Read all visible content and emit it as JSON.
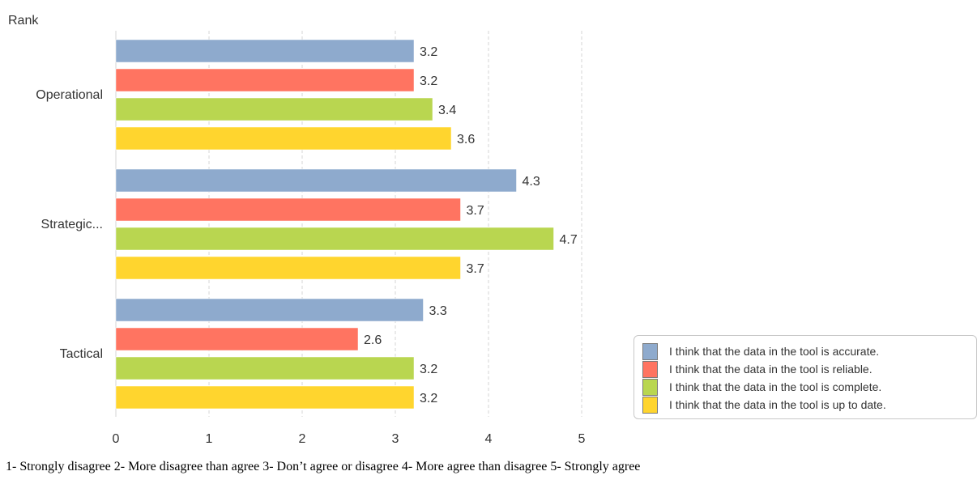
{
  "chart_data": {
    "type": "bar",
    "orientation": "horizontal",
    "title": "",
    "ylabel": "Rank",
    "xlabel": "",
    "categories": [
      "Operational",
      "Strategic...",
      "Tactical"
    ],
    "xlim": [
      0,
      5
    ],
    "xticks": [
      0,
      1,
      2,
      3,
      4,
      5
    ],
    "grid": true,
    "legend_position": "bottom-right",
    "series": [
      {
        "name": "I think that the data in the tool is accurate.",
        "color": "#8eaacd",
        "values": [
          3.2,
          4.3,
          3.3
        ]
      },
      {
        "name": "I think that the data in the tool is reliable.",
        "color": "#ff7461",
        "values": [
          3.2,
          3.7,
          2.6
        ]
      },
      {
        "name": "I think that the data in the tool is complete.",
        "color": "#b9d650",
        "values": [
          3.4,
          4.7,
          3.2
        ]
      },
      {
        "name": "I think that the data in the tool is up to date.",
        "color": "#ffd52e",
        "values": [
          3.6,
          3.7,
          3.2
        ]
      }
    ],
    "footnote": "1- Strongly disagree   2- More disagree than agree   3- Don’t agree or disagree   4- More agree than disagree    5- Strongly agree"
  }
}
